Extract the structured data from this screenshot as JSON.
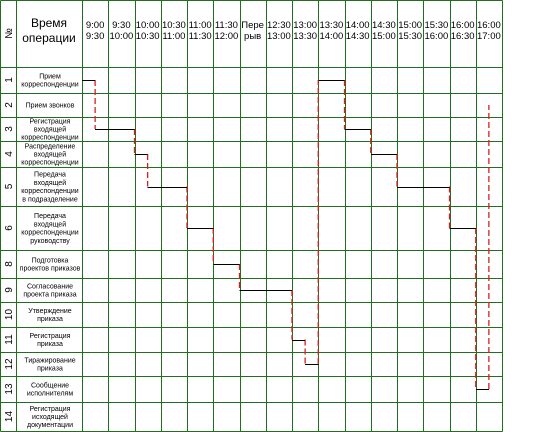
{
  "header": {
    "num_label": "№",
    "operation_label": [
      "Время",
      "операции"
    ]
  },
  "time_columns": [
    [
      "9:00",
      "9:30"
    ],
    [
      "9:30",
      "10:00"
    ],
    [
      "10:00",
      "10:30"
    ],
    [
      "10:30",
      "11:00"
    ],
    [
      "11:00",
      "11:30"
    ],
    [
      "11:30",
      "12:00"
    ],
    [
      "Пере",
      "рыв"
    ],
    [
      "12:30",
      "13:00"
    ],
    [
      "13:00",
      "13:30"
    ],
    [
      "13:30",
      "14:00"
    ],
    [
      "14:00",
      "14:30"
    ],
    [
      "14:30",
      "15:00"
    ],
    [
      "15:00",
      "15:30"
    ],
    [
      "15:30",
      "16:00"
    ],
    [
      "16:00",
      "16:30"
    ],
    [
      "16:00",
      "17:00"
    ]
  ],
  "operations": [
    {
      "num": "1",
      "label": [
        "Прием",
        "корреспонденции"
      ]
    },
    {
      "num": "2",
      "label": [
        "Прием звонков"
      ]
    },
    {
      "num": "3",
      "label": [
        "Регистрация",
        "входящей",
        "корреспонденции"
      ]
    },
    {
      "num": "4",
      "label": [
        "Распределение",
        "входящей",
        "корреспонденции"
      ]
    },
    {
      "num": "5",
      "label": [
        "Передача",
        "входящей",
        "корреспонденции",
        "в подразделение"
      ]
    },
    {
      "num": "6",
      "label": [
        "Передача",
        "входящей",
        "корреспонденции",
        "руководству"
      ]
    },
    {
      "num": "8",
      "label": [
        "Подготовка",
        "проектов приказов"
      ]
    },
    {
      "num": "9",
      "label": [
        "Согласование",
        "проекта приказа"
      ]
    },
    {
      "num": "10",
      "label": [
        "Утверждение",
        "приказа"
      ]
    },
    {
      "num": "11",
      "label": [
        "Регистрация",
        "приказа"
      ]
    },
    {
      "num": "12",
      "label": [
        "Тиражирование",
        "приказа"
      ]
    },
    {
      "num": "13",
      "label": [
        "Сообщение",
        "исполнителям"
      ]
    },
    {
      "num": "14",
      "label": [
        "Регистрация",
        "исходящей",
        "документации"
      ]
    }
  ],
  "schedule_segments": [
    {
      "row": 0,
      "start": 0,
      "end": 0.5
    },
    {
      "row": 0,
      "start": 9,
      "end": 10
    },
    {
      "row": 2,
      "start": 0.5,
      "end": 2
    },
    {
      "row": 2,
      "start": 10,
      "end": 11
    },
    {
      "row": 3,
      "start": 2,
      "end": 2.5
    },
    {
      "row": 3,
      "start": 11,
      "end": 12
    },
    {
      "row": 4,
      "start": 2.5,
      "end": 4
    },
    {
      "row": 4,
      "start": 12,
      "end": 14
    },
    {
      "row": 5,
      "start": 4,
      "end": 5
    },
    {
      "row": 5,
      "start": 14,
      "end": 15
    },
    {
      "row": 6,
      "start": 5,
      "end": 6
    },
    {
      "row": 7,
      "start": 6,
      "end": 8
    },
    {
      "row": 9,
      "start": 8,
      "end": 8.5
    },
    {
      "row": 10,
      "start": 8.5,
      "end": 9
    },
    {
      "row": 11,
      "start": 15,
      "end": 15.5
    }
  ],
  "connectors": [
    {
      "at": 0.5,
      "from_row": 0,
      "to_row": 2
    },
    {
      "at": 2,
      "from_row": 2,
      "to_row": 3
    },
    {
      "at": 2.5,
      "from_row": 3,
      "to_row": 4
    },
    {
      "at": 4,
      "from_row": 4,
      "to_row": 5
    },
    {
      "at": 5,
      "from_row": 5,
      "to_row": 6
    },
    {
      "at": 6,
      "from_row": 6,
      "to_row": 7
    },
    {
      "at": 8,
      "from_row": 7,
      "to_row": 9
    },
    {
      "at": 8.5,
      "from_row": 9,
      "to_row": 10
    },
    {
      "at": 9,
      "from_row": 10,
      "to_row": 0
    },
    {
      "at": 10,
      "from_row": 0,
      "to_row": 2
    },
    {
      "at": 11,
      "from_row": 2,
      "to_row": 3
    },
    {
      "at": 12,
      "from_row": 3,
      "to_row": 4
    },
    {
      "at": 14,
      "from_row": 4,
      "to_row": 5
    },
    {
      "at": 15,
      "from_row": 5,
      "to_row": 11
    },
    {
      "at": 15.5,
      "from_row": 11,
      "to_row": 1
    }
  ],
  "colors": {
    "grid": "#1f6f1f",
    "bar": "#000000",
    "connector": "#d62020"
  }
}
